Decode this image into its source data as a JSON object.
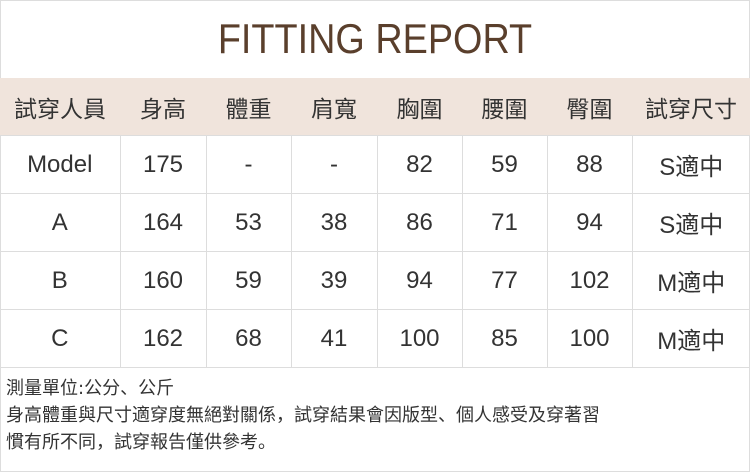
{
  "title": "FITTING REPORT",
  "headers": [
    "試穿人員",
    "身高",
    "體重",
    "肩寬",
    "胸圍",
    "腰圍",
    "臀圍",
    "試穿尺寸"
  ],
  "rows": [
    [
      "Model",
      "175",
      "-",
      "-",
      "82",
      "59",
      "88",
      "S適中"
    ],
    [
      "A",
      "164",
      "53",
      "38",
      "86",
      "71",
      "94",
      "S適中"
    ],
    [
      "B",
      "160",
      "59",
      "39",
      "94",
      "77",
      "102",
      "M適中"
    ],
    [
      "C",
      "162",
      "68",
      "41",
      "100",
      "85",
      "100",
      "M適中"
    ]
  ],
  "notes": [
    "測量單位:公分、公斤",
    "身高體重與尺寸適穿度無絕對關係，試穿結果會因版型、個人感受及穿著習",
    "慣有所不同，試穿報告僅供參考。"
  ],
  "colors": {
    "title": "#5a3f2c",
    "header_bg": "#f0e4dc",
    "text": "#333333",
    "grid": "#dddddd"
  }
}
